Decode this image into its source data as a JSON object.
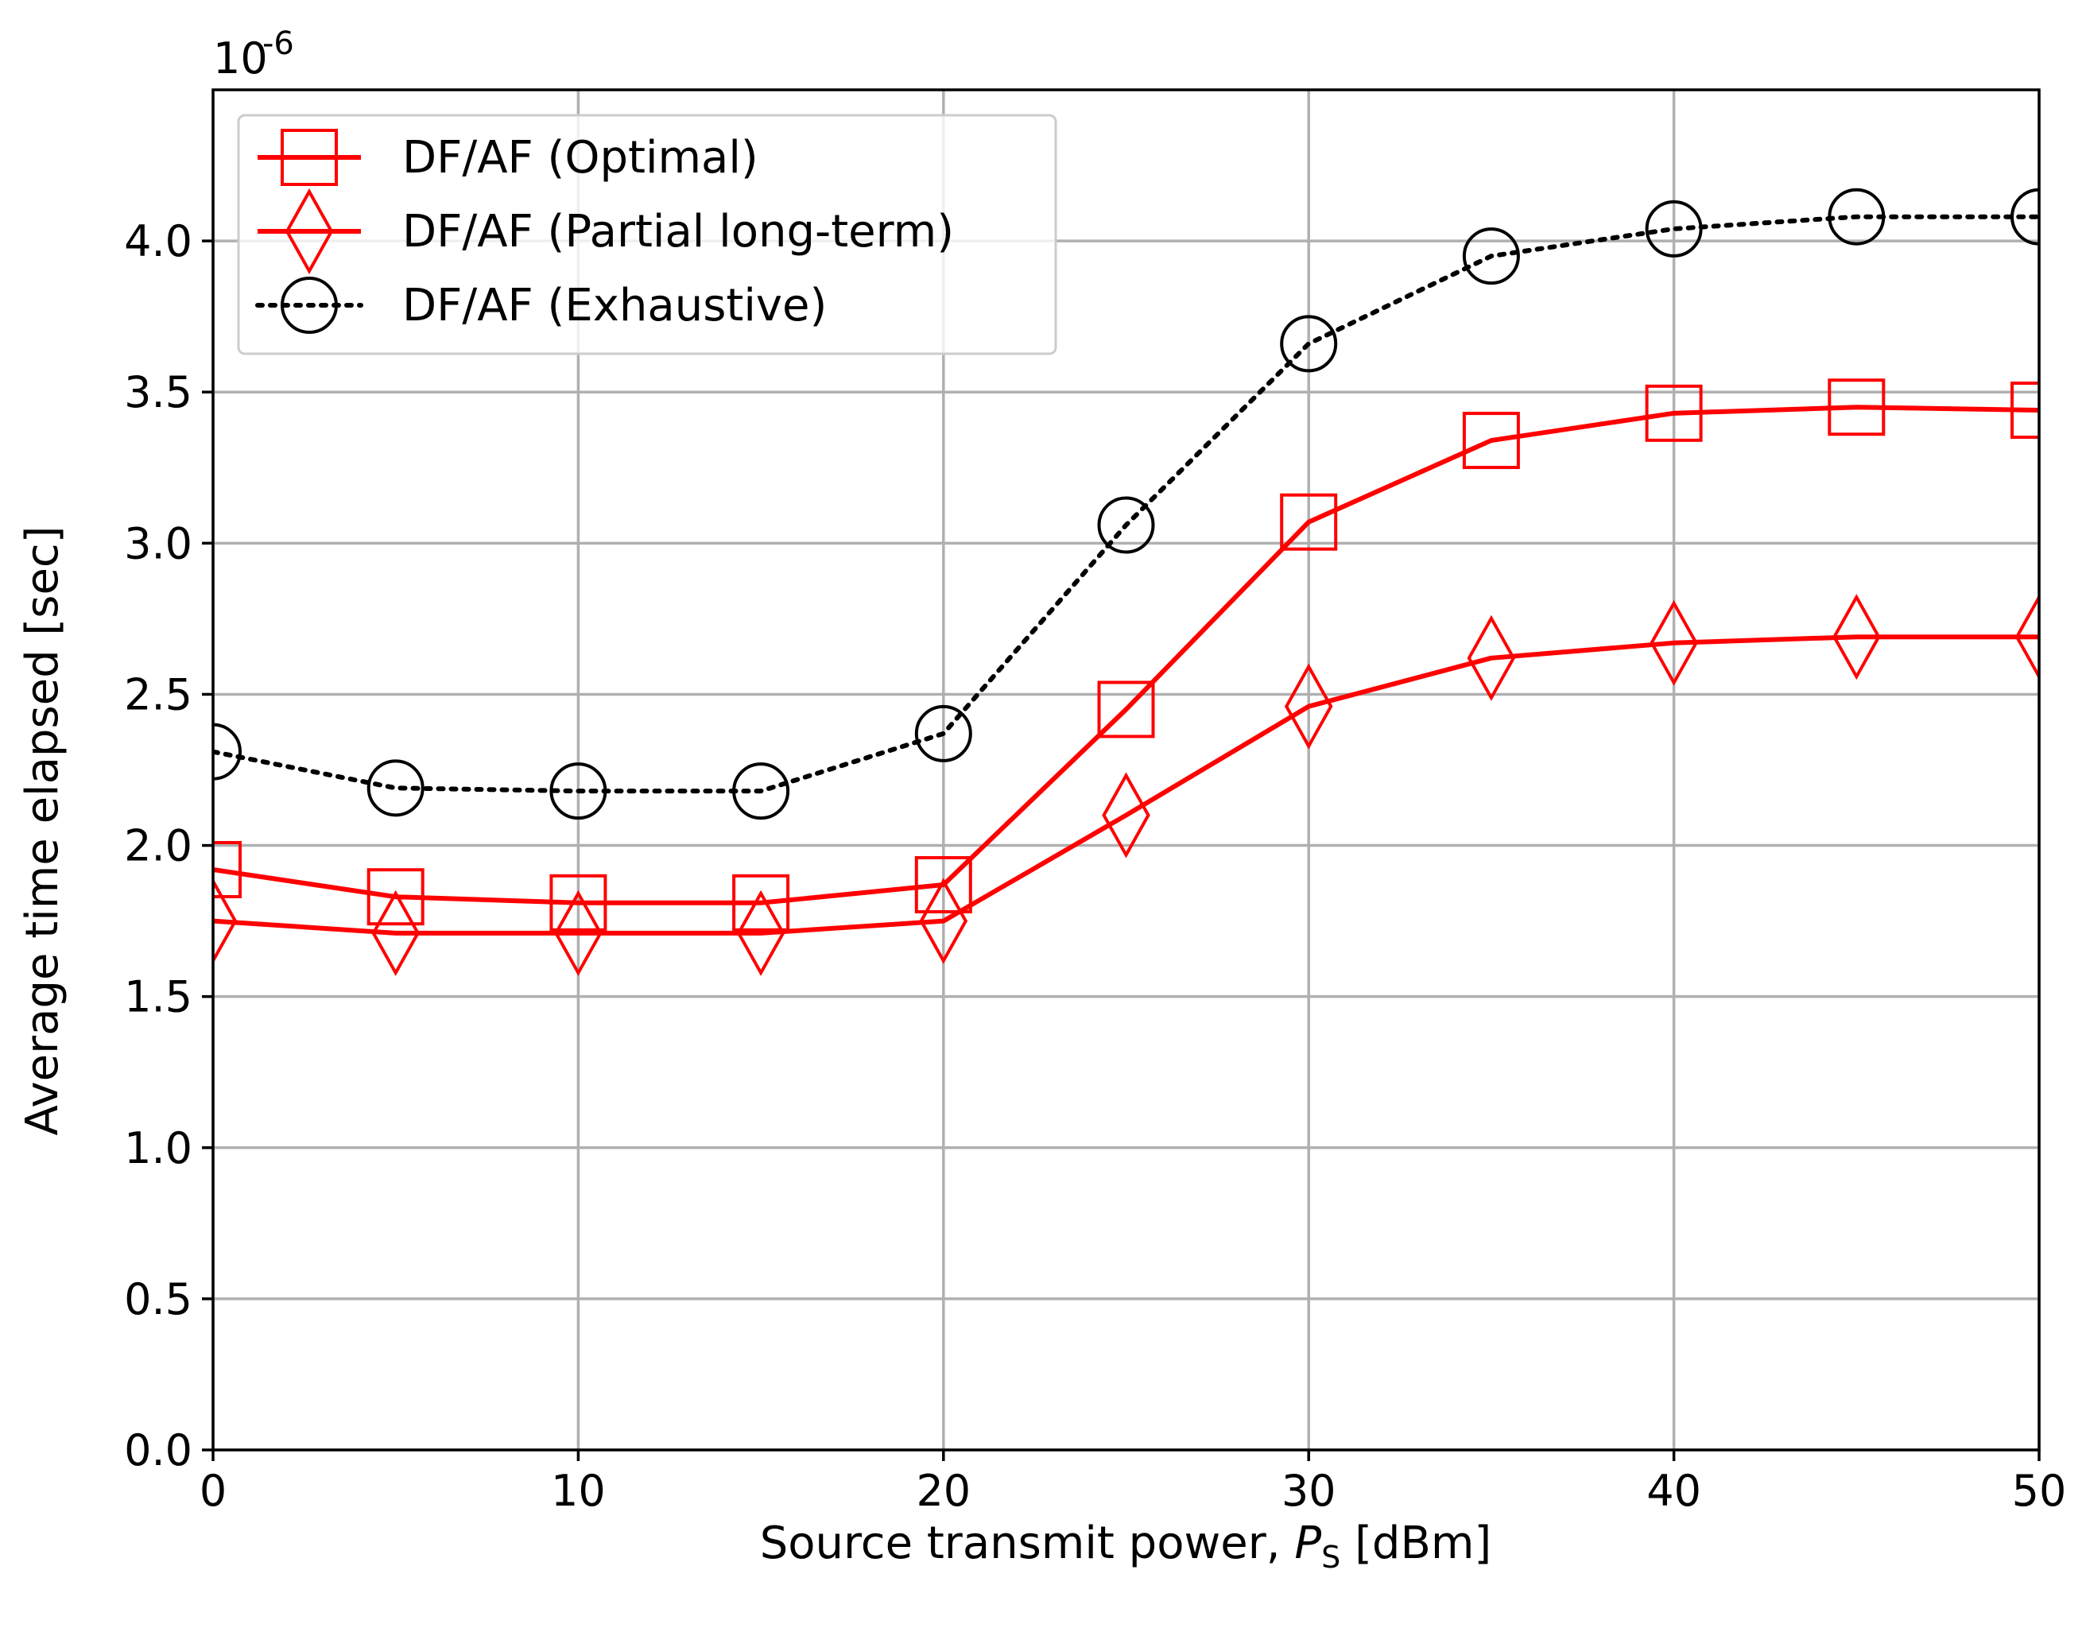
{
  "chart_data": {
    "type": "line",
    "title": "",
    "xlabel_prefix": "Source transmit power, ",
    "xlabel_var": "P",
    "xlabel_sub": "S",
    "xlabel_suffix": " [dBm]",
    "ylabel": "Average time elapsed [sec]",
    "y_scale_base": "10",
    "y_scale_exp": "-6",
    "xlim": [
      0,
      50
    ],
    "ylim": [
      0,
      4.5
    ],
    "xticks": [
      0,
      10,
      20,
      30,
      40,
      50
    ],
    "xtick_labels": [
      "0",
      "10",
      "20",
      "30",
      "40",
      "50"
    ],
    "yticks": [
      0,
      0.5,
      1,
      1.5,
      2,
      2.5,
      3,
      3.5,
      4
    ],
    "ytick_labels": [
      "0.0",
      "0.5",
      "1.0",
      "1.5",
      "2.0",
      "2.5",
      "3.0",
      "3.5",
      "4.0"
    ],
    "grid": true,
    "legend_position": "top-left",
    "x": [
      0,
      5,
      10,
      15,
      20,
      25,
      30,
      35,
      40,
      45,
      50
    ],
    "series": [
      {
        "name": "DF/AF (Optimal)",
        "color": "#ff0000",
        "linestyle": "solid",
        "marker": "square",
        "values": [
          1.92,
          1.83,
          1.81,
          1.81,
          1.87,
          2.45,
          3.07,
          3.34,
          3.43,
          3.45,
          3.44
        ]
      },
      {
        "name": "DF/AF (Partial long-term)",
        "color": "#ff0000",
        "linestyle": "solid",
        "marker": "diamond",
        "values": [
          1.75,
          1.71,
          1.71,
          1.71,
          1.75,
          2.1,
          2.46,
          2.62,
          2.67,
          2.69,
          2.69
        ]
      },
      {
        "name": "DF/AF (Exhaustive)",
        "color": "#000000",
        "linestyle": "dotted",
        "marker": "circle",
        "values": [
          2.31,
          2.19,
          2.18,
          2.18,
          2.37,
          3.06,
          3.66,
          3.95,
          4.04,
          4.08,
          4.08
        ]
      }
    ]
  }
}
